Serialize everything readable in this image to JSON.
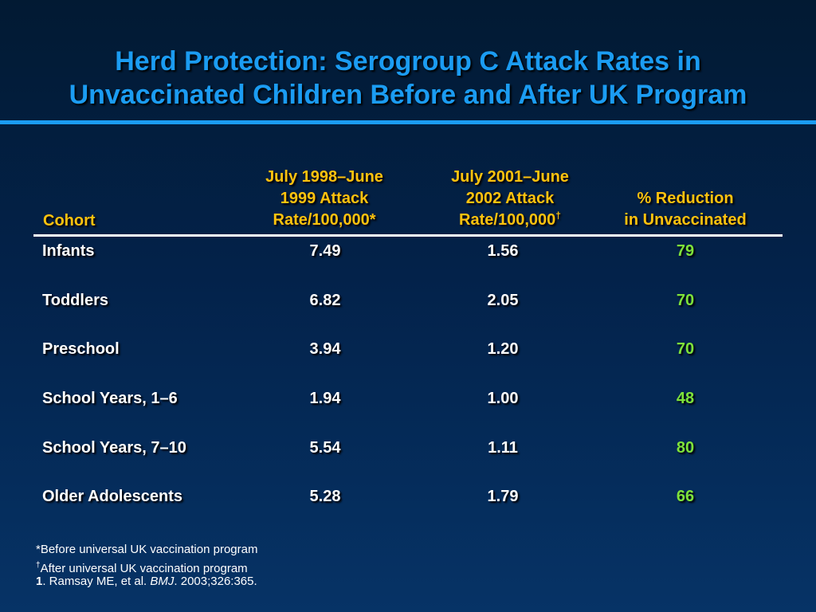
{
  "title": {
    "line1": "Herd Protection: Serogroup C Attack Rates in",
    "line2": "Unvaccinated Children Before and After UK Program"
  },
  "headers": {
    "cohort": "Cohort",
    "col1": [
      "July 1998–June",
      "1999 Attack",
      "Rate/100,000*"
    ],
    "col2_lines": [
      "July 2001–June",
      "2002 Attack"
    ],
    "col2_last": "Rate/100,000",
    "col2_mark": "†",
    "col3": [
      "% Reduction",
      "in Unvaccinated"
    ]
  },
  "rows": [
    {
      "cohort": "Infants",
      "rate_before": "7.49",
      "rate_after": "1.56",
      "reduction": "79"
    },
    {
      "cohort": "Toddlers",
      "rate_before": "6.82",
      "rate_after": "2.05",
      "reduction": "70"
    },
    {
      "cohort": "Preschool",
      "rate_before": "3.94",
      "rate_after": "1.20",
      "reduction": "70"
    },
    {
      "cohort": "School Years, 1–6",
      "rate_before": "1.94",
      "rate_after": "1.00",
      "reduction": "48"
    },
    {
      "cohort": "School Years, 7–10",
      "rate_before": "5.54",
      "rate_after": "1.11",
      "reduction": "80"
    },
    {
      "cohort": "Older Adolescents",
      "rate_before": "5.28",
      "rate_after": "1.79",
      "reduction": "66"
    }
  ],
  "footnotes": {
    "before": "*Before universal UK vaccination program",
    "after_mark": "†",
    "after": "After universal UK vaccination program",
    "ref_num": "1",
    "ref_pre": ". Ramsay ME, et al. ",
    "ref_journal": "BMJ",
    "ref_post": ". 2003;326:365."
  },
  "colors": {
    "title": "#1b9cf2",
    "header": "#ffc20e",
    "body_text": "#ffffff",
    "reduction_text": "#7ee23a",
    "background_top": "#021a33",
    "background_bottom": "#063366"
  }
}
